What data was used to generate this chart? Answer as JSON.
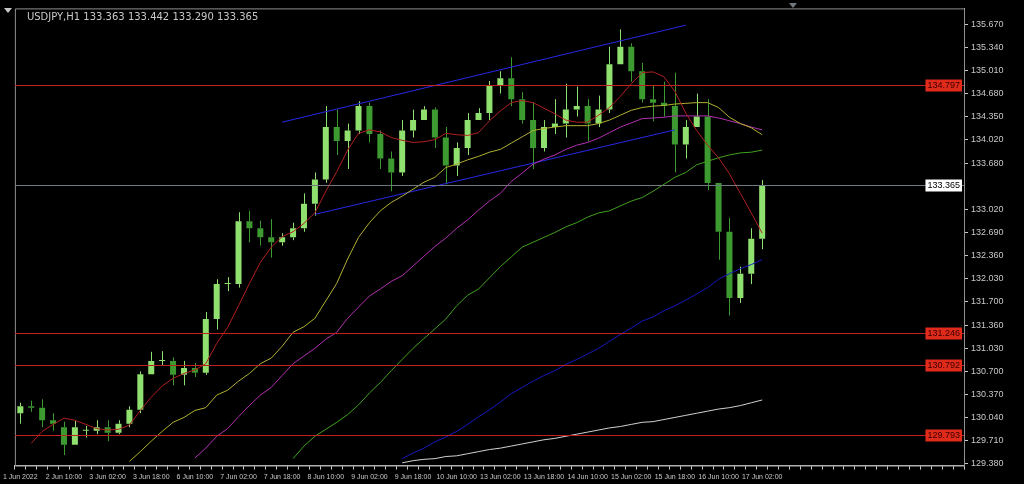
{
  "chart_data": {
    "type": "candlestick",
    "title": "USDJPY,H1 133.363 133.442 133.290 133.365",
    "categories": [
      "1 Jun 2022",
      null,
      null,
      null,
      "2 Jun 10:00",
      null,
      null,
      null,
      "3 Jun 02:00",
      null,
      null,
      null,
      "3 Jun 18:00",
      null,
      null,
      null,
      "6 Jun 10:00",
      null,
      null,
      null,
      "7 Jun 02:00",
      null,
      null,
      null,
      "7 Jun 18:00",
      null,
      null,
      null,
      "8 Jun 10:00",
      null,
      null,
      null,
      "9 Jun 02:00",
      null,
      null,
      null,
      "9 Jun 18:00",
      null,
      null,
      null,
      "10 Jun 10:00",
      null,
      null,
      null,
      "13 Jun 02:00",
      null,
      null,
      null,
      "13 Jun 18:00",
      null,
      null,
      null,
      "14 Jun 10:00",
      null,
      null,
      null,
      "15 Jun 02:00",
      null,
      null,
      null,
      "15 Jun 18:00",
      null,
      null,
      null,
      "16 Jun 10:00",
      null,
      null,
      null,
      "17 Jun 02:00",
      null,
      null,
      null,
      null,
      null,
      null,
      null,
      null,
      null,
      null,
      null,
      null,
      null,
      null,
      null,
      null,
      null,
      null
    ],
    "colors": [
      "#90e070",
      "#3c9a30",
      "#3c9a30",
      "#3c9a30",
      "#3c9a30",
      "#90e070",
      "#90e070",
      "#90e070",
      "#3c9a30",
      "#90e070",
      "#90e070",
      "#90e070",
      "#90e070",
      "#90e070",
      "#3c9a30",
      "#90e070",
      "#3c9a30",
      "#90e070",
      "#90e070",
      "#90e070",
      "#90e070",
      "#3c9a30",
      "#3c9a30",
      "#3c9a30",
      "#90e070",
      "#90e070",
      "#90e070",
      "#90e070",
      "#90e070",
      "#3c9a30",
      "#90e070",
      "#90e070",
      "#3c9a30",
      "#3c9a30",
      "#3c9a30",
      "#90e070",
      "#90e070",
      "#90e070",
      "#3c9a30",
      "#3c9a30",
      "#90e070",
      "#90e070",
      "#90e070",
      "#90e070",
      "#90e070",
      "#3c9a30",
      "#3c9a30",
      "#3c9a30",
      "#90e070",
      "#90e070",
      "#90e070",
      "#90e070",
      "#3c9a30",
      "#90e070",
      "#90e070",
      "#90e070",
      "#3c9a30",
      "#3c9a30",
      "#3c9a30",
      "#3c9a30",
      "#3c9a30",
      "#90e070",
      "#90e070",
      "#3c9a30",
      "#3c9a30",
      "#3c9a30",
      "#90e070",
      "#90e070",
      "#90e070",
      null,
      null,
      null,
      null,
      null,
      null,
      null,
      null,
      null,
      null,
      null,
      null,
      null,
      null,
      null,
      null,
      null,
      null
    ],
    "ohlc": [
      [
        130.1,
        130.25,
        129.95,
        130.2
      ],
      [
        130.2,
        130.28,
        130.12,
        130.18
      ],
      [
        130.18,
        130.3,
        129.9,
        130.0
      ],
      [
        130.0,
        130.1,
        129.85,
        129.95
      ],
      [
        129.9,
        129.98,
        129.5,
        129.65
      ],
      [
        129.65,
        130.0,
        129.65,
        129.9
      ],
      [
        129.85,
        129.92,
        129.75,
        129.85
      ],
      [
        129.85,
        130.0,
        129.8,
        129.9
      ],
      [
        129.9,
        130.0,
        129.7,
        129.82
      ],
      [
        129.82,
        130.0,
        129.8,
        129.95
      ],
      [
        129.95,
        130.2,
        129.9,
        130.15
      ],
      [
        130.15,
        130.7,
        130.1,
        130.66
      ],
      [
        130.66,
        130.98,
        130.66,
        130.85
      ],
      [
        130.85,
        130.99,
        130.78,
        130.85
      ],
      [
        130.85,
        130.9,
        130.5,
        130.65
      ],
      [
        130.65,
        130.85,
        130.5,
        130.75
      ],
      [
        130.75,
        130.82,
        130.62,
        130.68
      ],
      [
        130.68,
        131.55,
        130.65,
        131.45
      ],
      [
        131.45,
        132.02,
        131.3,
        131.95
      ],
      [
        131.95,
        132.05,
        131.85,
        131.95
      ],
      [
        131.95,
        132.98,
        131.9,
        132.85
      ],
      [
        132.85,
        133.0,
        132.55,
        132.75
      ],
      [
        132.75,
        132.86,
        132.5,
        132.62
      ],
      [
        132.62,
        132.88,
        132.33,
        132.55
      ],
      [
        132.55,
        132.68,
        132.5,
        132.62
      ],
      [
        132.62,
        132.83,
        132.58,
        132.75
      ],
      [
        132.75,
        133.25,
        132.7,
        133.1
      ],
      [
        133.1,
        133.55,
        132.93,
        133.45
      ],
      [
        133.45,
        134.5,
        133.4,
        134.2
      ],
      [
        134.2,
        134.45,
        133.8,
        134.0
      ],
      [
        134.0,
        134.25,
        133.6,
        134.15
      ],
      [
        134.15,
        134.57,
        134.1,
        134.5
      ],
      [
        134.5,
        134.55,
        133.98,
        134.1
      ],
      [
        134.1,
        134.15,
        133.6,
        133.75
      ],
      [
        133.75,
        133.85,
        133.28,
        133.55
      ],
      [
        133.55,
        134.3,
        133.5,
        134.15
      ],
      [
        134.15,
        134.45,
        134.05,
        134.3
      ],
      [
        134.3,
        134.5,
        134.3,
        134.45
      ],
      [
        134.45,
        134.48,
        133.9,
        134.05
      ],
      [
        134.05,
        134.2,
        133.38,
        133.65
      ],
      [
        133.65,
        133.98,
        133.5,
        133.9
      ],
      [
        133.9,
        134.4,
        133.8,
        134.3
      ],
      [
        134.3,
        134.47,
        134.3,
        134.4
      ],
      [
        134.4,
        134.86,
        134.3,
        134.8
      ],
      [
        134.8,
        135.0,
        134.68,
        134.9
      ],
      [
        134.9,
        135.2,
        134.5,
        134.6
      ],
      [
        134.6,
        134.7,
        134.25,
        134.3
      ],
      [
        134.3,
        134.55,
        133.6,
        133.9
      ],
      [
        133.9,
        134.3,
        133.85,
        134.2
      ],
      [
        134.2,
        134.6,
        134.1,
        134.25
      ],
      [
        134.25,
        134.82,
        134.05,
        134.45
      ],
      [
        134.45,
        134.78,
        134.35,
        134.5
      ],
      [
        134.5,
        134.6,
        134.0,
        134.25
      ],
      [
        134.25,
        134.65,
        134.2,
        134.45
      ],
      [
        134.45,
        135.35,
        134.4,
        135.1
      ],
      [
        135.1,
        135.6,
        135.1,
        135.35
      ],
      [
        135.35,
        135.4,
        134.85,
        135.0
      ],
      [
        135.0,
        135.12,
        134.55,
        134.6
      ],
      [
        134.6,
        134.8,
        134.28,
        134.55
      ],
      [
        134.55,
        134.85,
        134.35,
        134.5
      ],
      [
        134.5,
        134.98,
        133.55,
        133.95
      ],
      [
        133.95,
        134.3,
        133.75,
        134.2
      ],
      [
        134.2,
        134.68,
        134.2,
        134.35
      ],
      [
        134.35,
        134.6,
        133.3,
        133.4
      ],
      [
        133.4,
        133.4,
        132.3,
        132.7
      ],
      [
        132.7,
        132.9,
        131.5,
        131.75
      ],
      [
        131.75,
        132.2,
        131.68,
        132.1
      ],
      [
        132.1,
        132.75,
        131.95,
        132.6
      ],
      [
        132.6,
        133.44,
        132.45,
        133.365
      ],
      null,
      null,
      null,
      null,
      null,
      null,
      null,
      null,
      null,
      null,
      null,
      null,
      null,
      null,
      null,
      null,
      null,
      null
    ],
    "series": [
      {
        "type": "line",
        "color": "#b02020",
        "values": [
          null,
          129.67,
          129.84,
          129.94,
          130.03,
          130.0,
          129.94,
          129.88,
          129.86,
          129.87,
          129.93,
          130.14,
          130.33,
          130.49,
          130.6,
          130.67,
          130.72,
          130.81,
          131.1,
          131.33,
          131.64,
          131.96,
          132.26,
          132.48,
          132.63,
          132.7,
          132.82,
          132.97,
          133.28,
          133.56,
          133.87,
          134.11,
          134.16,
          134.13,
          134.05,
          134.01,
          133.98,
          133.99,
          134.02,
          134.11,
          134.09,
          134.08,
          134.12,
          134.29,
          134.43,
          134.55,
          134.58,
          134.55,
          134.47,
          134.39,
          134.3,
          134.27,
          134.27,
          134.37,
          134.48,
          134.64,
          134.82,
          134.98,
          134.99,
          134.92,
          134.71,
          134.4,
          134.15,
          133.94,
          133.76,
          133.53,
          133.25,
          132.97,
          132.68,
          null,
          null,
          null,
          null,
          null,
          null,
          null,
          null,
          null,
          null,
          null,
          null,
          null,
          null,
          null,
          null,
          null,
          null
        ]
      },
      {
        "type": "line",
        "color": "#b0b030",
        "values": [
          null,
          null,
          null,
          null,
          null,
          null,
          null,
          null,
          null,
          null,
          129.41,
          129.55,
          129.7,
          129.84,
          129.97,
          130.04,
          130.14,
          130.18,
          130.36,
          130.43,
          130.56,
          130.67,
          130.81,
          130.89,
          131.06,
          131.26,
          131.34,
          131.46,
          131.71,
          131.96,
          132.31,
          132.62,
          132.83,
          133.0,
          133.12,
          133.21,
          133.31,
          133.41,
          133.48,
          133.62,
          133.67,
          133.73,
          133.78,
          133.84,
          133.88,
          133.97,
          134.06,
          134.15,
          134.18,
          134.2,
          134.22,
          134.22,
          134.22,
          134.25,
          134.3,
          134.37,
          134.44,
          134.48,
          134.5,
          134.51,
          134.53,
          134.54,
          134.55,
          134.55,
          134.48,
          134.34,
          134.25,
          134.19,
          134.09,
          null,
          null,
          null,
          null,
          null,
          null,
          null,
          null,
          null,
          null,
          null,
          null,
          null,
          null,
          null,
          null,
          null,
          null
        ]
      },
      {
        "type": "line",
        "color": "#b030b0",
        "values": [
          null,
          null,
          null,
          null,
          null,
          null,
          null,
          null,
          null,
          null,
          null,
          null,
          null,
          null,
          null,
          null,
          129.46,
          129.6,
          129.77,
          129.88,
          130.05,
          130.21,
          130.36,
          130.47,
          130.64,
          130.81,
          130.92,
          131.03,
          131.16,
          131.26,
          131.46,
          131.62,
          131.78,
          131.88,
          131.99,
          132.07,
          132.21,
          132.35,
          132.49,
          132.61,
          132.75,
          132.87,
          133.01,
          133.14,
          133.25,
          133.42,
          133.54,
          133.67,
          133.74,
          133.8,
          133.88,
          133.94,
          133.98,
          134.04,
          134.12,
          134.2,
          134.26,
          134.32,
          134.33,
          134.34,
          134.36,
          134.36,
          134.36,
          134.36,
          134.33,
          134.29,
          134.25,
          134.2,
          134.16,
          null,
          null,
          null,
          null,
          null,
          null,
          null,
          null,
          null,
          null,
          null,
          null,
          null,
          null,
          null,
          null,
          null,
          null
        ]
      },
      {
        "type": "line",
        "color": "#40a020",
        "values": [
          null,
          null,
          null,
          null,
          null,
          null,
          null,
          null,
          null,
          null,
          null,
          null,
          null,
          null,
          null,
          null,
          null,
          null,
          null,
          null,
          null,
          null,
          null,
          null,
          null,
          129.45,
          129.63,
          129.77,
          129.87,
          129.97,
          130.08,
          130.22,
          130.39,
          130.54,
          130.71,
          130.87,
          131.03,
          131.17,
          131.31,
          131.45,
          131.64,
          131.79,
          131.88,
          132.04,
          132.2,
          132.34,
          132.48,
          132.55,
          132.62,
          132.69,
          132.77,
          132.83,
          132.91,
          132.97,
          133.0,
          133.07,
          133.14,
          133.19,
          133.28,
          133.38,
          133.48,
          133.55,
          133.66,
          133.71,
          133.76,
          133.8,
          133.83,
          133.84,
          133.87,
          null,
          null,
          null,
          null,
          null,
          null,
          null,
          null,
          null,
          null,
          null,
          null,
          null,
          null,
          null,
          null,
          null,
          null
        ]
      },
      {
        "type": "line",
        "color": "#1818c0",
        "values": [
          null,
          null,
          null,
          null,
          null,
          null,
          null,
          null,
          null,
          null,
          null,
          null,
          null,
          null,
          null,
          null,
          null,
          null,
          null,
          null,
          null,
          null,
          null,
          null,
          null,
          null,
          null,
          null,
          null,
          null,
          null,
          null,
          null,
          null,
          null,
          129.45,
          129.53,
          129.6,
          129.69,
          129.76,
          129.84,
          129.94,
          130.05,
          130.15,
          130.26,
          130.38,
          130.47,
          130.56,
          130.64,
          130.71,
          130.8,
          130.87,
          130.95,
          131.03,
          131.13,
          131.23,
          131.32,
          131.42,
          131.48,
          131.57,
          131.64,
          131.72,
          131.81,
          131.9,
          132.02,
          132.1,
          132.17,
          132.23,
          132.3,
          null,
          null,
          null,
          null,
          null,
          null,
          null,
          null,
          null,
          null,
          null,
          null,
          null,
          null,
          null,
          null,
          null,
          null
        ]
      },
      {
        "type": "line",
        "color": "#d0d0d0",
        "values": [
          null,
          null,
          null,
          null,
          null,
          null,
          null,
          null,
          null,
          null,
          null,
          null,
          null,
          null,
          null,
          null,
          null,
          null,
          null,
          null,
          null,
          null,
          null,
          null,
          null,
          null,
          null,
          null,
          null,
          null,
          null,
          null,
          null,
          null,
          null,
          129.39,
          129.42,
          129.44,
          129.45,
          129.48,
          129.49,
          129.52,
          129.55,
          129.58,
          129.6,
          129.63,
          129.66,
          129.69,
          129.72,
          129.74,
          129.77,
          129.8,
          129.83,
          129.86,
          129.89,
          129.91,
          129.94,
          129.97,
          129.98,
          130.01,
          130.04,
          130.07,
          130.1,
          130.13,
          130.16,
          130.18,
          130.21,
          130.25,
          130.29,
          null,
          null,
          null,
          null,
          null,
          null,
          null,
          null,
          null,
          null,
          null,
          null,
          null,
          null,
          null,
          null,
          null,
          null
        ]
      },
      {
        "type": "line",
        "color": "#2828e8",
        "values": [
          null,
          null,
          null,
          null,
          null,
          null,
          null,
          null,
          null,
          null,
          null,
          null,
          null,
          null,
          null,
          null,
          null,
          null,
          null,
          null,
          null,
          null,
          null,
          null,
          134.27,
          null,
          null,
          null,
          null,
          null,
          null,
          null,
          null,
          null,
          null,
          null,
          null,
          null,
          null,
          null,
          null,
          null,
          null,
          null,
          null,
          null,
          null,
          null,
          null,
          null,
          null,
          null,
          null,
          null,
          null,
          null,
          null,
          null,
          null,
          null,
          null,
          135.66,
          null,
          null,
          null,
          null,
          null,
          null,
          null,
          null,
          null,
          null,
          null,
          null,
          null,
          null,
          null,
          null,
          null,
          null,
          null,
          null,
          null,
          null,
          null,
          null,
          null
        ]
      },
      {
        "type": "line",
        "color": "#2828e8",
        "values": [
          null,
          null,
          null,
          null,
          null,
          null,
          null,
          null,
          null,
          null,
          null,
          null,
          null,
          null,
          null,
          null,
          null,
          null,
          null,
          null,
          null,
          null,
          null,
          null,
          null,
          null,
          null,
          132.95,
          null,
          null,
          null,
          null,
          null,
          null,
          null,
          null,
          null,
          null,
          null,
          null,
          null,
          null,
          null,
          null,
          null,
          null,
          null,
          null,
          null,
          null,
          null,
          null,
          null,
          null,
          null,
          null,
          null,
          null,
          null,
          null,
          134.16,
          null,
          null,
          null,
          null,
          null,
          null,
          null,
          null,
          null,
          null,
          null,
          null,
          null,
          null,
          null,
          null,
          null,
          null,
          null,
          null,
          null,
          null,
          null,
          null,
          null,
          null
        ]
      }
    ],
    "ylim": [
      129.35,
      135.9
    ],
    "yticks": [
      {
        "value": 129.38,
        "label": "129.380"
      },
      {
        "value": 129.71,
        "label": "129.710"
      },
      {
        "value": 130.04,
        "label": "130.040"
      },
      {
        "value": 130.37,
        "label": "130.370"
      },
      {
        "value": 130.7,
        "label": "130.700"
      },
      {
        "value": 131.03,
        "label": "131.030"
      },
      {
        "value": 131.36,
        "label": "131.360"
      },
      {
        "value": 131.7,
        "label": "131.700"
      },
      {
        "value": 132.03,
        "label": "132.030"
      },
      {
        "value": 132.36,
        "label": "132.360"
      },
      {
        "value": 132.69,
        "label": "132.690"
      },
      {
        "value": 133.02,
        "label": "133.020"
      },
      {
        "value": 133.68,
        "label": "133.680"
      },
      {
        "value": 134.02,
        "label": "134.020"
      },
      {
        "value": 134.35,
        "label": "134.350"
      },
      {
        "value": 134.68,
        "label": "134.680"
      },
      {
        "value": 135.01,
        "label": "135.010"
      },
      {
        "value": 135.34,
        "label": "135.340"
      },
      {
        "value": 135.67,
        "label": "135.670"
      }
    ],
    "ref_lines": [
      {
        "axis": "y",
        "value": 134.797,
        "label": "134.797",
        "color": "#c02020"
      },
      {
        "axis": "y",
        "value": 133.365,
        "label": "133.365",
        "color": "#707880"
      },
      {
        "axis": "y",
        "value": 131.246,
        "label": "131.246",
        "color": "#c02020"
      },
      {
        "axis": "y",
        "value": 130.792,
        "label": "130.792",
        "color": "#c02020"
      },
      {
        "axis": "y",
        "value": 129.793,
        "label": "129.793",
        "color": "#c02020"
      }
    ]
  }
}
